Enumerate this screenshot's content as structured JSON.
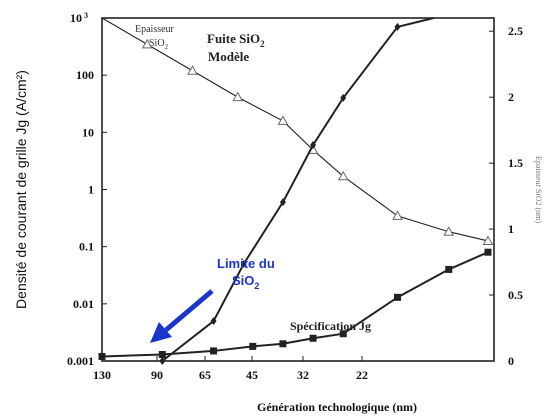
{
  "chart_data": {
    "type": "line",
    "title": "",
    "xlabel": "Génération technologique (nm)",
    "ylabel_left": "Densité de courant de grille Jg (A/cm²)",
    "ylabel_right": "Epaisseur SiO2 (nm)",
    "x_ticks": [
      "130",
      "90",
      "65",
      "45",
      "32",
      "22"
    ],
    "y_left_ticks": [
      "0.001",
      "0.01",
      "0.1",
      "1",
      "10",
      "100"
    ],
    "y_left_top_tick": {
      "base": "10",
      "exp": "3"
    },
    "y_left_scale": "log",
    "y_left_range": [
      0.001,
      1000
    ],
    "y_right_ticks": [
      "0",
      "0.5",
      "1",
      "1.5",
      "2",
      "2.5"
    ],
    "y_right_range": [
      0,
      2.6
    ],
    "grid": false,
    "series": [
      {
        "name": "Epaisseur SiO2",
        "axis": "right",
        "marker": "triangle",
        "points": [
          {
            "x": 130,
            "y": 2.6
          },
          {
            "x": 115,
            "y": 2.4
          },
          {
            "x": 100,
            "y": 2.2
          },
          {
            "x": 85,
            "y": 2.0
          },
          {
            "x": 70,
            "y": 1.82
          },
          {
            "x": 60,
            "y": 1.6
          },
          {
            "x": 50,
            "y": 1.4
          },
          {
            "x": 32,
            "y": 1.1
          },
          {
            "x": 15,
            "y": 0.98
          },
          {
            "x": 2,
            "y": 0.91
          }
        ]
      },
      {
        "name": "Fuite SiO2 Modèle",
        "axis": "left",
        "marker": "diamond",
        "points": [
          {
            "x": 110,
            "y": 0.001
          },
          {
            "x": 93,
            "y": 0.005
          },
          {
            "x": 83,
            "y": 0.05
          },
          {
            "x": 70,
            "y": 0.6
          },
          {
            "x": 60,
            "y": 6
          },
          {
            "x": 50,
            "y": 40
          },
          {
            "x": 32,
            "y": 700
          },
          {
            "x": 20,
            "y": 1000
          }
        ]
      },
      {
        "name": "Spécification Jg",
        "axis": "left",
        "marker": "square",
        "points": [
          {
            "x": 130,
            "y": 0.0012
          },
          {
            "x": 110,
            "y": 0.0013
          },
          {
            "x": 93,
            "y": 0.0015
          },
          {
            "x": 80,
            "y": 0.0018
          },
          {
            "x": 70,
            "y": 0.002
          },
          {
            "x": 60,
            "y": 0.0025
          },
          {
            "x": 50,
            "y": 0.003
          },
          {
            "x": 32,
            "y": 0.013
          },
          {
            "x": 15,
            "y": 0.04
          },
          {
            "x": 2,
            "y": 0.08
          }
        ]
      }
    ],
    "annotations": {
      "epaisseur_line1": "Epaisseur",
      "epaisseur_line2": "SiO",
      "epaisseur_sub": "2",
      "fuite_line1": "Fuite SiO",
      "fuite_sub": "2",
      "fuite_line2": "Modèle",
      "limite_line1": "Limite du",
      "limite_line2": "SiO",
      "limite_sub": "2",
      "specification": "Spécification Jg"
    },
    "colors": {
      "series": "#222222",
      "arrow": "#1a35c9",
      "limite_text": "#1a35c9"
    }
  }
}
